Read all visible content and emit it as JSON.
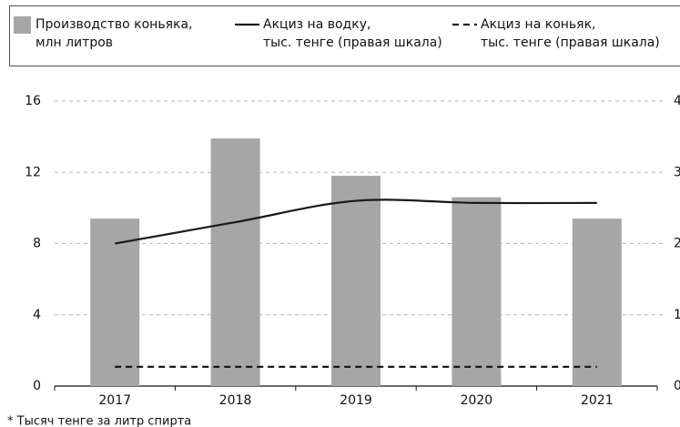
{
  "chart_data": {
    "type": "bar",
    "categories": [
      "2017",
      "2018",
      "2019",
      "2020",
      "2021"
    ],
    "series": [
      {
        "name": "Производство коньяка,\nмлн литров",
        "type": "bar",
        "color": "#a6a6a6",
        "values": [
          9.4,
          13.9,
          11.8,
          10.6,
          9.4
        ]
      },
      {
        "name": "Акциз на водку,\nтыс. тенге (правая шкала)",
        "type": "line",
        "color": "#1a1a1a",
        "dash": false,
        "axis": "y2",
        "values": [
          2.0,
          2.3,
          2.6,
          2.57,
          2.57
        ]
      },
      {
        "name": "Акциз на коньяк,\nтыс. тенге (правая шкала)",
        "type": "line",
        "color": "#1a1a1a",
        "dash": true,
        "axis": "y2",
        "values": [
          0.27,
          0.27,
          0.27,
          0.27,
          0.27
        ]
      }
    ],
    "ylim": [
      0,
      16
    ],
    "yticks": [
      0,
      4,
      8,
      12,
      16
    ],
    "y2lim": [
      0,
      4
    ],
    "y2ticks": [
      0,
      1,
      2,
      3,
      4
    ],
    "grid": true,
    "footnote": "* Тысяч тенге за литр спирта"
  }
}
